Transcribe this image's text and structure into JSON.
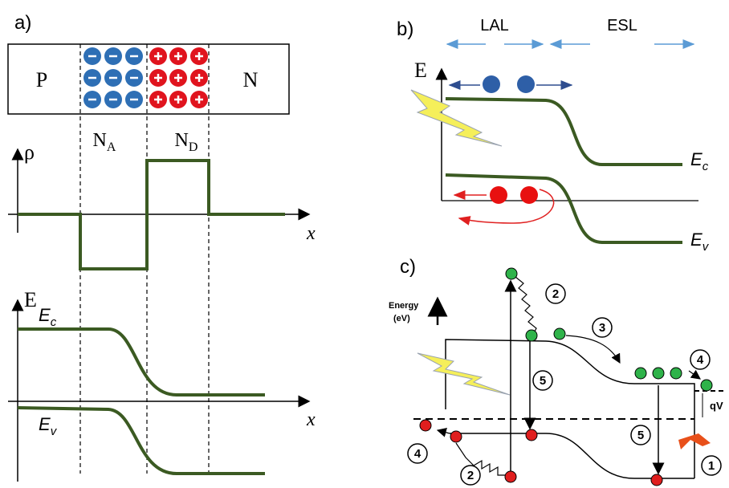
{
  "panel_a": {
    "label": "a)",
    "p_region": "P",
    "n_region": "N",
    "na": {
      "main": "N",
      "sub": "A"
    },
    "nd": {
      "main": "N",
      "sub": "D"
    },
    "rho_axis": "ρ",
    "x_axis_1": "x",
    "energy_axis": "E",
    "ec": {
      "main": "E",
      "sub": "c"
    },
    "ev": {
      "main": "E",
      "sub": "v"
    },
    "x_axis_2": "x"
  },
  "panel_b": {
    "label": "b)",
    "lal": "LAL",
    "esl": "ESL",
    "energy_axis": "E",
    "ec": {
      "main": "E",
      "sub": "c"
    },
    "ev": {
      "main": "E",
      "sub": "v"
    }
  },
  "panel_c": {
    "label": "c)",
    "energy_title": "Energy",
    "energy_unit": "(eV)",
    "steps": [
      "2",
      "3",
      "4",
      "5",
      "5",
      "4",
      "2",
      "1"
    ],
    "qv": "qV"
  }
}
